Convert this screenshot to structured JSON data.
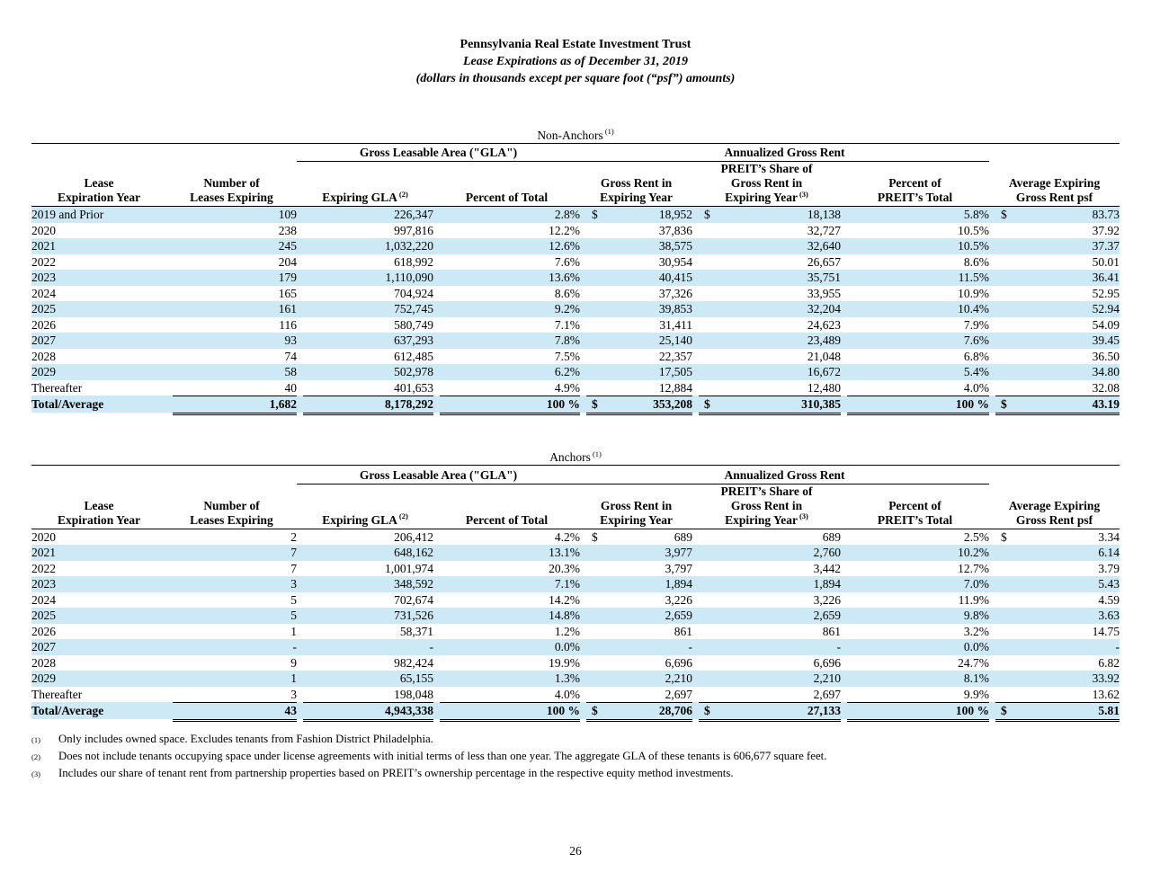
{
  "page": {
    "title": "Pennsylvania Real Estate Investment Trust",
    "subtitle": "Lease Expirations as of December 31, 2019",
    "note": "(dollars in thousands except per square foot (“psf”) amounts)",
    "page_number": "26"
  },
  "colors": {
    "stripe": "#cde9f6"
  },
  "columns": {
    "group_gla": "Gross Leasable Area (\"GLA\")",
    "group_agr": "Annualized Gross Rent",
    "c1": [
      "Lease",
      "Expiration Year"
    ],
    "c2": [
      "Number of",
      "Leases Expiring"
    ],
    "c3": "Expiring GLA",
    "c3_sup": "(2)",
    "c4": "Percent of Total",
    "c5": [
      "Gross Rent in",
      "Expiring Year"
    ],
    "c6": [
      "PREIT’s Share of",
      "Gross Rent in",
      "Expiring Year"
    ],
    "c6_sup": "(3)",
    "c7": [
      "Percent of",
      "PREIT’s Total"
    ],
    "c8": [
      "Average Expiring",
      "Gross Rent psf"
    ]
  },
  "tables": [
    {
      "title": "Non-Anchors",
      "title_sup": "(1)",
      "rows": [
        {
          "year": "2019 and Prior",
          "leases": "109",
          "gla": "226,347",
          "pct_gla": "2.8%",
          "rent_d": "$",
          "rent": "18,952",
          "share_d": "$",
          "share": "18,138",
          "pct_rent": "5.8%",
          "psf_d": "$",
          "psf": "83.73"
        },
        {
          "year": "2020",
          "leases": "238",
          "gla": "997,816",
          "pct_gla": "12.2%",
          "rent": "37,836",
          "share": "32,727",
          "pct_rent": "10.5%",
          "psf": "37.92"
        },
        {
          "year": "2021",
          "leases": "245",
          "gla": "1,032,220",
          "pct_gla": "12.6%",
          "rent": "38,575",
          "share": "32,640",
          "pct_rent": "10.5%",
          "psf": "37.37"
        },
        {
          "year": "2022",
          "leases": "204",
          "gla": "618,992",
          "pct_gla": "7.6%",
          "rent": "30,954",
          "share": "26,657",
          "pct_rent": "8.6%",
          "psf": "50.01"
        },
        {
          "year": "2023",
          "leases": "179",
          "gla": "1,110,090",
          "pct_gla": "13.6%",
          "rent": "40,415",
          "share": "35,751",
          "pct_rent": "11.5%",
          "psf": "36.41"
        },
        {
          "year": "2024",
          "leases": "165",
          "gla": "704,924",
          "pct_gla": "8.6%",
          "rent": "37,326",
          "share": "33,955",
          "pct_rent": "10.9%",
          "psf": "52.95"
        },
        {
          "year": "2025",
          "leases": "161",
          "gla": "752,745",
          "pct_gla": "9.2%",
          "rent": "39,853",
          "share": "32,204",
          "pct_rent": "10.4%",
          "psf": "52.94"
        },
        {
          "year": "2026",
          "leases": "116",
          "gla": "580,749",
          "pct_gla": "7.1%",
          "rent": "31,411",
          "share": "24,623",
          "pct_rent": "7.9%",
          "psf": "54.09"
        },
        {
          "year": "2027",
          "leases": "93",
          "gla": "637,293",
          "pct_gla": "7.8%",
          "rent": "25,140",
          "share": "23,489",
          "pct_rent": "7.6%",
          "psf": "39.45"
        },
        {
          "year": "2028",
          "leases": "74",
          "gla": "612,485",
          "pct_gla": "7.5%",
          "rent": "22,357",
          "share": "21,048",
          "pct_rent": "6.8%",
          "psf": "36.50"
        },
        {
          "year": "2029",
          "leases": "58",
          "gla": "502,978",
          "pct_gla": "6.2%",
          "rent": "17,505",
          "share": "16,672",
          "pct_rent": "5.4%",
          "psf": "34.80"
        },
        {
          "year": "Thereafter",
          "leases": "40",
          "gla": "401,653",
          "pct_gla": "4.9%",
          "rent": "12,884",
          "share": "12,480",
          "pct_rent": "4.0%",
          "psf": "32.08"
        }
      ],
      "total": {
        "year": "Total/Average",
        "leases": "1,682",
        "gla": "8,178,292",
        "pct_gla": "100 %",
        "rent_d": "$",
        "rent": "353,208",
        "share_d": "$",
        "share": "310,385",
        "pct_rent": "100 %",
        "psf_d": "$",
        "psf": "43.19"
      }
    },
    {
      "title": "Anchors",
      "title_sup": "(1)",
      "rows": [
        {
          "year": "2020",
          "leases": "2",
          "gla": "206,412",
          "pct_gla": "4.2%",
          "rent_d": "$",
          "rent": "689",
          "share": "689",
          "pct_rent": "2.5%",
          "psf_d": "$",
          "psf": "3.34"
        },
        {
          "year": "2021",
          "leases": "7",
          "gla": "648,162",
          "pct_gla": "13.1%",
          "rent": "3,977",
          "share": "2,760",
          "pct_rent": "10.2%",
          "psf": "6.14"
        },
        {
          "year": "2022",
          "leases": "7",
          "gla": "1,001,974",
          "pct_gla": "20.3%",
          "rent": "3,797",
          "share": "3,442",
          "pct_rent": "12.7%",
          "psf": "3.79"
        },
        {
          "year": "2023",
          "leases": "3",
          "gla": "348,592",
          "pct_gla": "7.1%",
          "rent": "1,894",
          "share": "1,894",
          "pct_rent": "7.0%",
          "psf": "5.43"
        },
        {
          "year": "2024",
          "leases": "5",
          "gla": "702,674",
          "pct_gla": "14.2%",
          "rent": "3,226",
          "share": "3,226",
          "pct_rent": "11.9%",
          "psf": "4.59"
        },
        {
          "year": "2025",
          "leases": "5",
          "gla": "731,526",
          "pct_gla": "14.8%",
          "rent": "2,659",
          "share": "2,659",
          "pct_rent": "9.8%",
          "psf": "3.63"
        },
        {
          "year": "2026",
          "leases": "1",
          "gla": "58,371",
          "pct_gla": "1.2%",
          "rent": "861",
          "share": "861",
          "pct_rent": "3.2%",
          "psf": "14.75"
        },
        {
          "year": "2027",
          "leases": "-",
          "gla": "-",
          "pct_gla": "0.0%",
          "rent": "-",
          "share": "-",
          "pct_rent": "0.0%",
          "psf": "-"
        },
        {
          "year": "2028",
          "leases": "9",
          "gla": "982,424",
          "pct_gla": "19.9%",
          "rent": "6,696",
          "share": "6,696",
          "pct_rent": "24.7%",
          "psf": "6.82"
        },
        {
          "year": "2029",
          "leases": "1",
          "gla": "65,155",
          "pct_gla": "1.3%",
          "rent": "2,210",
          "share": "2,210",
          "pct_rent": "8.1%",
          "psf": "33.92"
        },
        {
          "year": "Thereafter",
          "leases": "3",
          "gla": "198,048",
          "pct_gla": "4.0%",
          "rent": "2,697",
          "share": "2,697",
          "pct_rent": "9.9%",
          "psf": "13.62"
        }
      ],
      "total": {
        "year": "Total/Average",
        "leases": "43",
        "gla": "4,943,338",
        "pct_gla": "100 %",
        "rent_d": "$",
        "rent": "28,706",
        "share_d": "$",
        "share": "27,133",
        "pct_rent": "100 %",
        "psf_d": "$",
        "psf": "5.81"
      }
    }
  ],
  "footnotes": [
    {
      "sup": "(1)",
      "text": "Only includes owned space. Excludes tenants from Fashion District Philadelphia."
    },
    {
      "sup": "(2)",
      "text": "Does not include tenants occupying space under license agreements with initial terms of less than one year. The aggregate GLA of these tenants is 606,677 square feet."
    },
    {
      "sup": "(3)",
      "text": "Includes our share of tenant rent from partnership properties based on PREIT’s ownership percentage in the respective equity method investments."
    }
  ]
}
